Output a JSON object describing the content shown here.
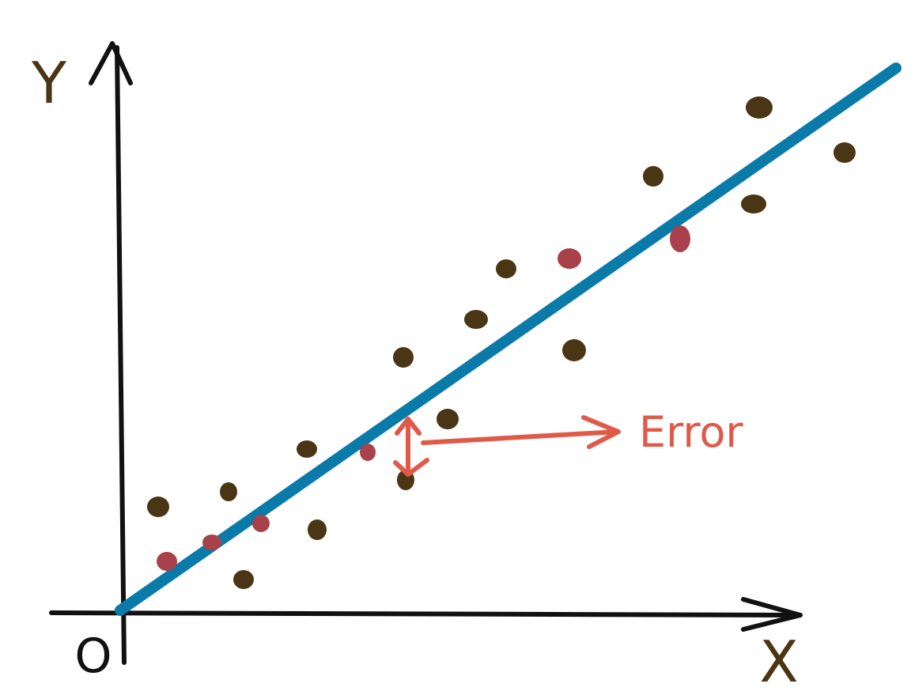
{
  "axes": {
    "y_label": "Y",
    "x_label": "X",
    "origin_label": "O"
  },
  "annotation": {
    "error_label": "Error"
  }
}
